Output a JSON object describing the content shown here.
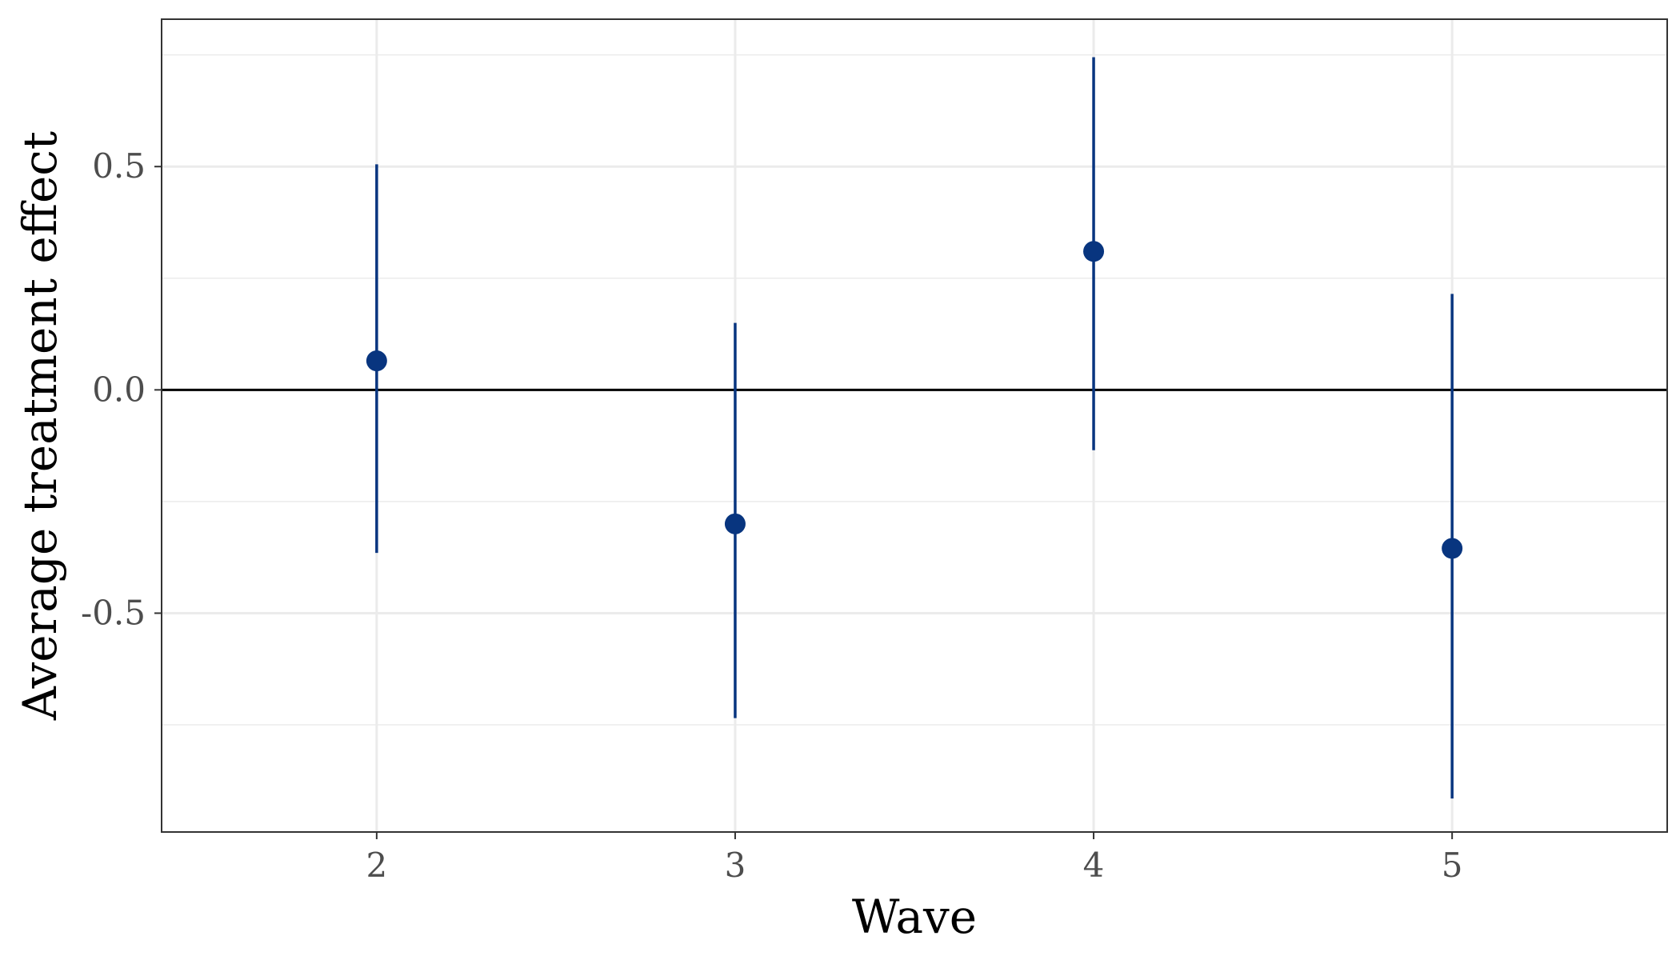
{
  "chart_data": {
    "type": "scatter",
    "subtype": "pointrange",
    "title": "",
    "xlabel": "Wave",
    "ylabel": "Average treatment effect",
    "x": [
      2,
      3,
      4,
      5
    ],
    "x_tick_labels": [
      "2",
      "3",
      "4",
      "5"
    ],
    "xlim": [
      1.4,
      5.6
    ],
    "ylim": [
      -0.99,
      0.83
    ],
    "y_ticks": [
      -0.5,
      0.0,
      0.5
    ],
    "y_tick_labels": [
      "-0.5",
      "0.0",
      "0.5"
    ],
    "y_minor_ticks": [
      -0.75,
      -0.25,
      0.25,
      0.75
    ],
    "grid": true,
    "reference_line": 0.0,
    "series": [
      {
        "estimate": [
          0.065,
          -0.3,
          0.31,
          -0.355
        ],
        "lower": [
          -0.365,
          -0.735,
          -0.135,
          -0.915
        ],
        "upper": [
          0.505,
          0.15,
          0.745,
          0.215
        ]
      }
    ],
    "colors": {
      "point": "#08357f",
      "grid": "#ebebeb",
      "reference": "#000000",
      "panel_border": "#333333"
    }
  }
}
